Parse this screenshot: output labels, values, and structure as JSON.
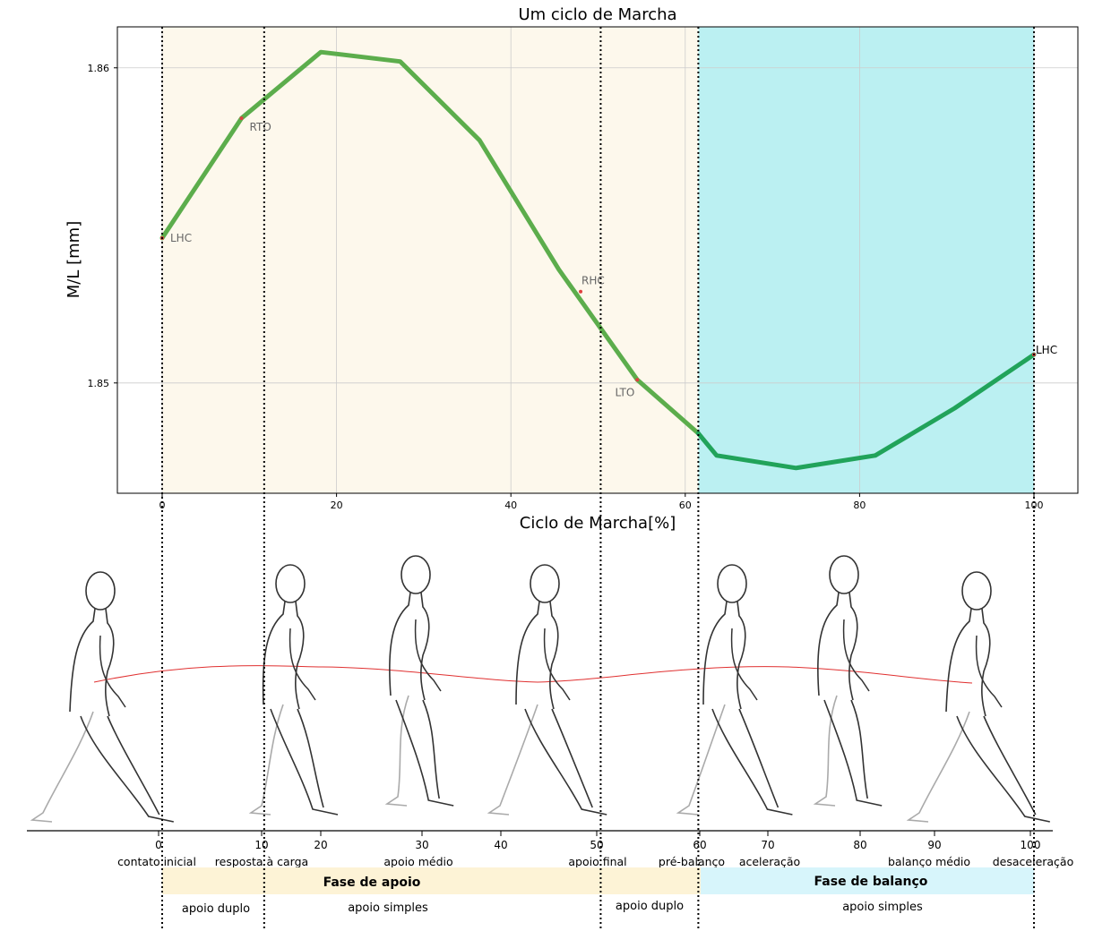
{
  "chart_data": {
    "type": "line",
    "title": "Um ciclo de Marcha",
    "xlabel": "Ciclo de Marcha[%]",
    "ylabel": "M/L [mm]",
    "xlim": [
      -5,
      105
    ],
    "ylim": [
      1.8465,
      1.8613
    ],
    "xticks": [
      0,
      20,
      40,
      60,
      80,
      100
    ],
    "yticks": [
      1.85,
      1.86
    ],
    "ytick_labels": [
      "1.85",
      "1.86"
    ],
    "grid": true,
    "series": [
      {
        "name": "Fase de apoio",
        "color": "#5cad4c",
        "x": [
          0,
          9.1,
          18.2,
          27.3,
          36.4,
          45.5,
          54.5,
          61.5
        ],
        "values": [
          1.8546,
          1.8584,
          1.8605,
          1.8602,
          1.8577,
          1.8536,
          1.8501,
          1.8484
        ]
      },
      {
        "name": "Fase de balanço",
        "color": "#21a35a",
        "x": [
          61.5,
          63.6,
          72.7,
          81.8,
          90.9,
          100
        ],
        "values": [
          1.8484,
          1.8477,
          1.8473,
          1.8477,
          1.8492,
          1.8509
        ]
      }
    ],
    "events": [
      {
        "label": "LHC",
        "x": 0,
        "y": 1.8546,
        "color": "#666666",
        "anchor": "right"
      },
      {
        "label": "RTO",
        "x": 9.1,
        "y": 1.8584,
        "color": "#666666",
        "anchor": "below-right"
      },
      {
        "label": "RHC",
        "x": 48,
        "y": 1.8529,
        "color": "#666666",
        "anchor": "above-right"
      },
      {
        "label": "LTO",
        "x": 54.5,
        "y": 1.8501,
        "color": "#666666",
        "anchor": "below-left"
      },
      {
        "label": "LHC",
        "x": 100,
        "y": 1.8509,
        "color": "#000000",
        "anchor": "right"
      }
    ],
    "shaded_regions": [
      {
        "x": [
          0,
          61.5
        ],
        "color": "#fdf8ec"
      },
      {
        "x": [
          61.5,
          100
        ],
        "color": "#bbf0f2"
      }
    ],
    "vertical_lines": [
      0,
      11.7,
      50.3,
      61.5,
      100
    ]
  },
  "gait_scale": {
    "ticks": [
      "0",
      "10",
      "20",
      "30",
      "40",
      "50",
      "60",
      "70",
      "80",
      "90",
      "100"
    ],
    "phases": [
      "contato inicial",
      "resposta à carga",
      "apoio médio",
      "apoio final",
      "pré-balanço",
      "aceleração",
      "balanço médio",
      "desaceleração"
    ],
    "stance_label": "Fase de apoio",
    "swing_label": "Fase de balanço",
    "support": [
      "apoio duplo",
      "apoio simples",
      "apoio duplo",
      "apoio simples"
    ]
  },
  "colors": {
    "stance_band": "#fdf3d6",
    "swing_band": "#d7f5fb",
    "com_curve": "#e03030"
  }
}
